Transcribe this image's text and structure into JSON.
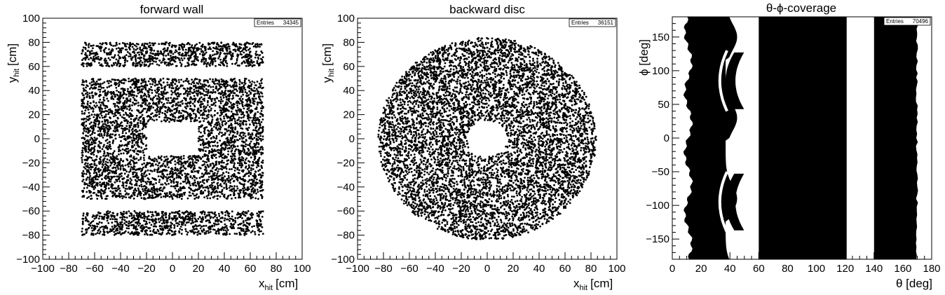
{
  "chart_data": [
    {
      "type": "scatter",
      "title": "forward wall",
      "xlabel": {
        "main": "x",
        "sub": "hit",
        "unit": "[cm]"
      },
      "ylabel": {
        "main": "y",
        "sub": "hit",
        "unit": "[cm]"
      },
      "xlim": [
        -100,
        100
      ],
      "ylim": [
        -100,
        100
      ],
      "xticks": [
        "−100",
        "−80",
        "−60",
        "−40",
        "−20",
        "0",
        "20",
        "40",
        "60",
        "80",
        "100"
      ],
      "yticks": [
        "−100",
        "−80",
        "−60",
        "−40",
        "−20",
        "0",
        "20",
        "40",
        "60",
        "80",
        "100"
      ],
      "stats": {
        "label": "Entries",
        "value": "34345"
      },
      "point_color": "#000000",
      "regions": [
        {
          "shape": "rect",
          "x": [
            -70,
            70
          ],
          "y": [
            60,
            80
          ]
        },
        {
          "shape": "rect",
          "x": [
            -70,
            70
          ],
          "y": [
            -50,
            50
          ],
          "hole": {
            "x": [
              -20,
              20
            ],
            "y": [
              -14,
              14
            ]
          }
        },
        {
          "shape": "rect",
          "x": [
            -70,
            70
          ],
          "y": [
            -80,
            -60
          ]
        }
      ]
    },
    {
      "type": "scatter",
      "title": "backward disc",
      "xlabel": {
        "main": "x",
        "sub": "hit",
        "unit": "[cm]"
      },
      "ylabel": {
        "main": "y",
        "sub": "hit",
        "unit": "[cm]"
      },
      "xlim": [
        -100,
        100
      ],
      "ylim": [
        -100,
        100
      ],
      "xticks": [
        "−100",
        "−80",
        "−60",
        "−40",
        "−20",
        "0",
        "20",
        "40",
        "60",
        "80",
        "100"
      ],
      "yticks": [
        "−100",
        "−80",
        "−60",
        "−40",
        "−20",
        "0",
        "20",
        "40",
        "60",
        "80",
        "100"
      ],
      "stats": {
        "label": "Entries",
        "value": "36151"
      },
      "point_color": "#000000",
      "regions": [
        {
          "shape": "annulus",
          "cx": 0,
          "cy": 0,
          "r_inner": 15,
          "r_outer": 84
        }
      ]
    },
    {
      "type": "scatter",
      "title": "θ-ϕ-coverage",
      "xlabel": {
        "main": "θ [deg]"
      },
      "ylabel": {
        "main": "ϕ [deg]"
      },
      "xlim": [
        0,
        180
      ],
      "ylim": [
        -180,
        180
      ],
      "xticks": [
        "0",
        "20",
        "40",
        "60",
        "80",
        "100",
        "120",
        "140",
        "160",
        "180"
      ],
      "yticks": [
        "−150",
        "−100",
        "−50",
        "0",
        "50",
        "100",
        "150"
      ],
      "ytick_values": [
        -150,
        -100,
        -50,
        0,
        50,
        100,
        150
      ],
      "stats": {
        "label": "Entries",
        "value": "70496"
      },
      "point_color": "#000000",
      "regions": [
        {
          "shape": "band",
          "theta": [
            12,
            37
          ],
          "phi": [
            -180,
            180
          ]
        },
        {
          "shape": "band",
          "theta": [
            60,
            121
          ],
          "phi": [
            -180,
            180
          ]
        },
        {
          "shape": "band",
          "theta": [
            140,
            170
          ],
          "phi": [
            -180,
            180
          ]
        }
      ]
    }
  ]
}
